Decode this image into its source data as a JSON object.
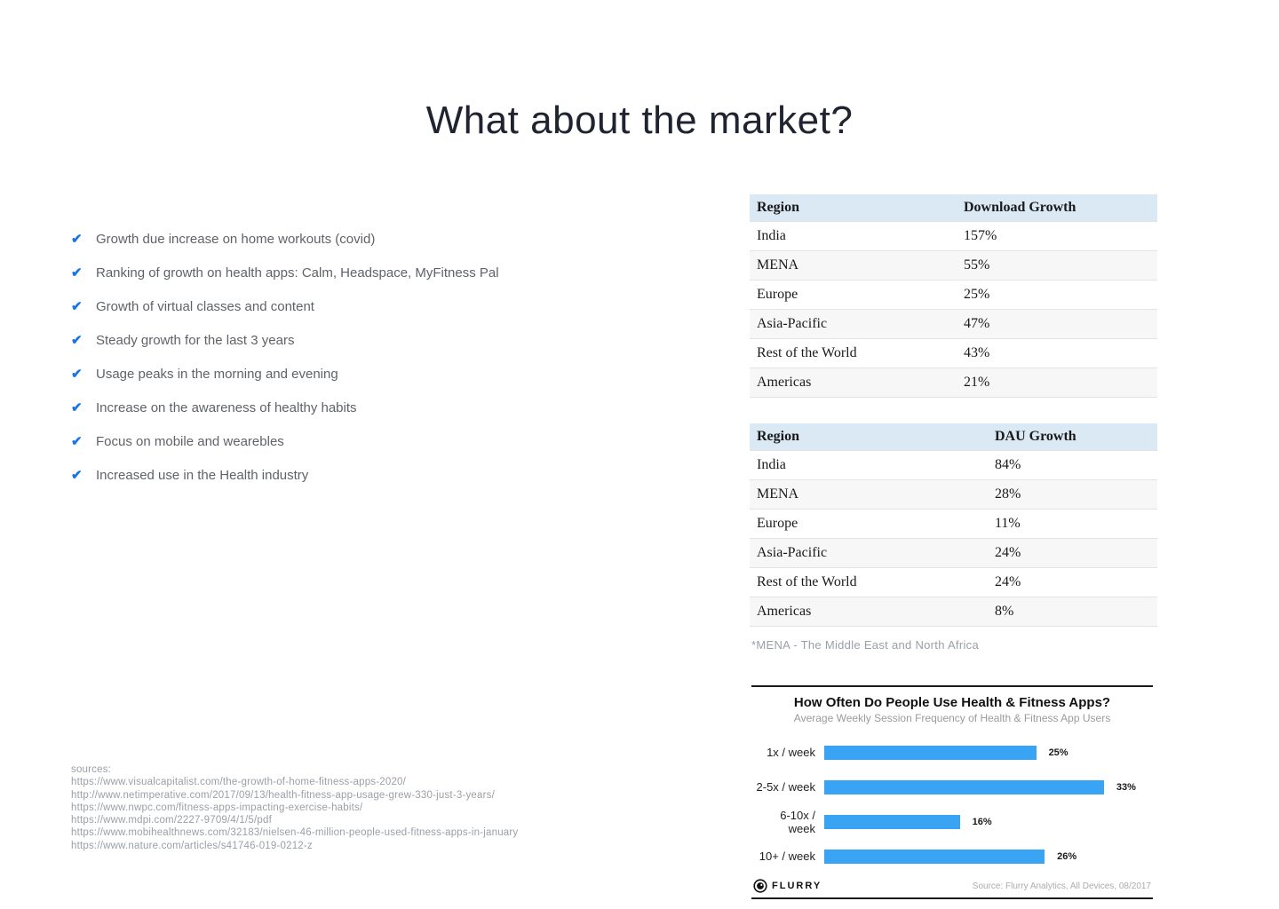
{
  "slide": {
    "title": "What about the market?"
  },
  "bullets": {
    "items": [
      "Growth due increase on home workouts (covid)",
      "Ranking of growth on health apps: Calm, Headspace, MyFitness Pal",
      "Growth of virtual classes and content",
      "Steady growth for the last 3 years",
      "Usage peaks in the morning and evening",
      "Increase on the awareness of healthy habits",
      "Focus on mobile and wearebles",
      "Increased use in the Health industry"
    ]
  },
  "tables": [
    {
      "headers": [
        "Region",
        "Download Growth"
      ],
      "rows": [
        [
          "India",
          "157%"
        ],
        [
          "MENA",
          "55%"
        ],
        [
          "Europe",
          "25%"
        ],
        [
          "Asia-Pacific",
          "47%"
        ],
        [
          "Rest of the World",
          "43%"
        ],
        [
          "Americas",
          "21%"
        ]
      ]
    },
    {
      "headers": [
        "Region",
        "DAU Growth"
      ],
      "rows": [
        [
          "India",
          "84%"
        ],
        [
          "MENA",
          "28%"
        ],
        [
          "Europe",
          "11%"
        ],
        [
          "Asia-Pacific",
          "24%"
        ],
        [
          "Rest of the World",
          "24%"
        ],
        [
          "Americas",
          "8%"
        ]
      ]
    }
  ],
  "mena_note": "*MENA - The Middle East and North Africa",
  "chart_data": {
    "type": "bar",
    "orientation": "horizontal",
    "title": "How Often Do People Use Health & Fitness Apps?",
    "subtitle": "Average Weekly Session Frequency of Health & Fitness App Users",
    "categories": [
      "1x / week",
      "2-5x / week",
      "6-10x / week",
      "10+ / week"
    ],
    "values": [
      25,
      33,
      16,
      26
    ],
    "value_labels": [
      "25%",
      "33%",
      "16%",
      "26%"
    ],
    "xlim": [
      0,
      35
    ],
    "grid": false,
    "legend": "none",
    "bar_color": "#38a4f3",
    "footer_brand": "FLURRY",
    "footer_source": "Source: Flurry Analytics, All Devices, 08/2017"
  },
  "sources": {
    "label": "sources:",
    "urls": [
      "https://www.visualcapitalist.com/the-growth-of-home-fitness-apps-2020/",
      "http://www.netimperative.com/2017/09/13/health-fitness-app-usage-grew-330-just-3-years/",
      "https://www.nwpc.com/fitness-apps-impacting-exercise-habits/",
      "https://www.mdpi.com/2227-9709/4/1/5/pdf",
      "https://www.mobihealthnews.com/32183/nielsen-46-million-people-used-fitness-apps-in-january",
      "https://www.nature.com/articles/s41746-019-0212-z"
    ]
  },
  "colors": {
    "accent_blue": "#1a73e8",
    "bar_blue": "#38a4f3",
    "table_header_bg": "#dbe9f5"
  }
}
